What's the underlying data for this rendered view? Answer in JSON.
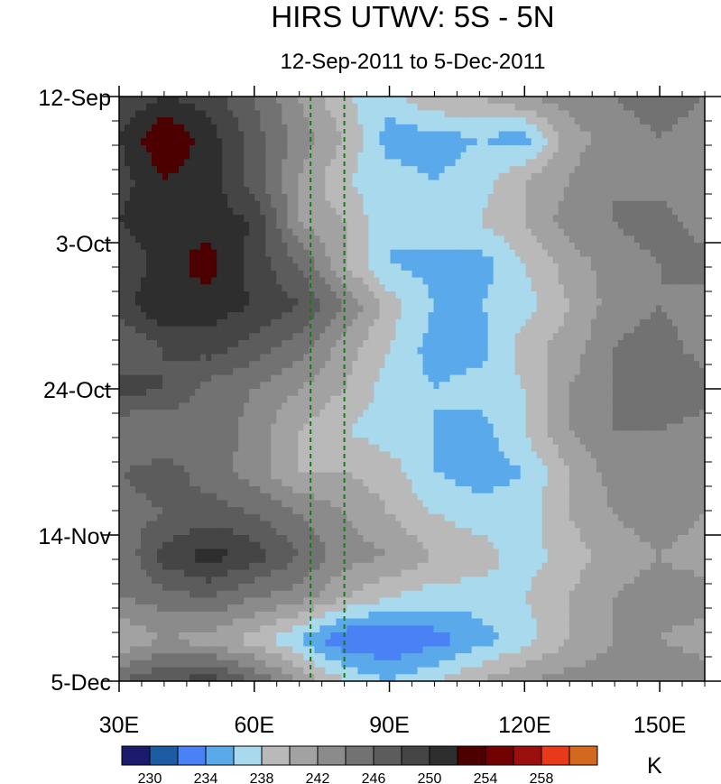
{
  "chart_data": {
    "type": "heatmap",
    "title": "HIRS UTWV: 5S - 5N",
    "subtitle": "12-Sep-2011 to 5-Dec-2011",
    "xlabel": "",
    "ylabel": "",
    "unit": "K",
    "xlim": [
      30,
      160
    ],
    "x_ticks": [
      30,
      60,
      90,
      120,
      150
    ],
    "x_tick_labels": [
      "30E",
      "60E",
      "90E",
      "120E",
      "150E"
    ],
    "y_range_days": [
      0,
      84
    ],
    "y_ticks_days": [
      0,
      21,
      42,
      63,
      84
    ],
    "y_tick_labels": [
      "12-Sep",
      "3-Oct",
      "24-Oct",
      "14-Nov",
      "5-Dec"
    ],
    "reference_lines_lon": [
      72.5,
      80
    ],
    "contour_levels": [
      228,
      230,
      232,
      234,
      236,
      238,
      240,
      242,
      244,
      246,
      248,
      250,
      252,
      254,
      256,
      258,
      260
    ],
    "colorbar_labels": [
      "230",
      "234",
      "238",
      "242",
      "246",
      "250",
      "254",
      "258"
    ],
    "colorbar_label_levels": [
      230,
      234,
      238,
      242,
      246,
      250,
      254,
      258
    ],
    "colors": [
      "#1c1b6b",
      "#1d5ca3",
      "#4a82f5",
      "#5aa9ea",
      "#a8d9ec",
      "#b9b9b9",
      "#a2a2a2",
      "#8b8b8b",
      "#727272",
      "#5c5c5c",
      "#454545",
      "#2e2e2e",
      "#4d0000",
      "#720202",
      "#9c0f0f",
      "#e83a1a",
      "#d2691e"
    ],
    "grid_lon": [
      30,
      40,
      50,
      60,
      70,
      80,
      90,
      100,
      110,
      120,
      130,
      140,
      150,
      160
    ],
    "grid_day": [
      0,
      6,
      12,
      18,
      24,
      30,
      36,
      42,
      48,
      54,
      60,
      66,
      72,
      78,
      84
    ],
    "values": [
      [
        248,
        250,
        249,
        246,
        242,
        238,
        237,
        240,
        240,
        242,
        243,
        244,
        245,
        244
      ],
      [
        250,
        254,
        251,
        247,
        243,
        240,
        235,
        235,
        236,
        235,
        241,
        243,
        244,
        243
      ],
      [
        249,
        252,
        251,
        247,
        242,
        238,
        237,
        236,
        237,
        240,
        242,
        244,
        243,
        242
      ],
      [
        250,
        252,
        251,
        250,
        242,
        240,
        236,
        238,
        238,
        240,
        243,
        244,
        245,
        243
      ],
      [
        248,
        251,
        253,
        249,
        246,
        240,
        236,
        235,
        235,
        238,
        241,
        243,
        244,
        245
      ],
      [
        249,
        252,
        251,
        250,
        248,
        244,
        239,
        236,
        236,
        237,
        240,
        243,
        244,
        243
      ],
      [
        246,
        248,
        249,
        247,
        245,
        241,
        238,
        235,
        235,
        239,
        241,
        244,
        245,
        243
      ],
      [
        249,
        248,
        245,
        244,
        242,
        240,
        237,
        236,
        237,
        238,
        242,
        244,
        246,
        245
      ],
      [
        244,
        244,
        246,
        243,
        240,
        238,
        237,
        236,
        235,
        238,
        242,
        244,
        244,
        243
      ],
      [
        246,
        247,
        245,
        243,
        240,
        240,
        239,
        236,
        235,
        236,
        240,
        243,
        244,
        244
      ],
      [
        245,
        246,
        247,
        246,
        244,
        242,
        240,
        238,
        237,
        237,
        240,
        242,
        243,
        242
      ],
      [
        244,
        249,
        251,
        249,
        246,
        243,
        242,
        240,
        239,
        237,
        239,
        241,
        242,
        241
      ],
      [
        244,
        245,
        246,
        244,
        243,
        240,
        238,
        237,
        237,
        238,
        240,
        242,
        243,
        243
      ],
      [
        240,
        242,
        241,
        239,
        236,
        232,
        232,
        233,
        235,
        237,
        240,
        242,
        242,
        241
      ],
      [
        246,
        248,
        249,
        246,
        242,
        238,
        236,
        238,
        240,
        242,
        243,
        243,
        244,
        243
      ]
    ]
  }
}
